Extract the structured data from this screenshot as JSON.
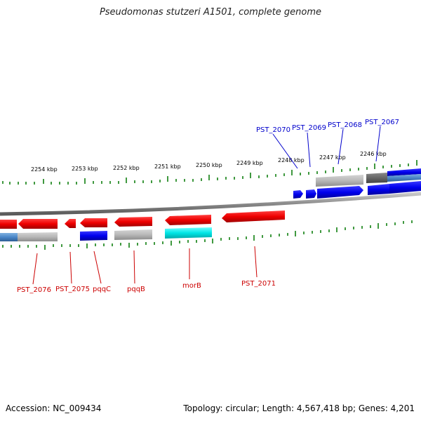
{
  "title": "Pseudomonas stutzeri A1501, complete genome",
  "footer": {
    "accession": "Accession: NC_009434",
    "summary": "Topology: circular; Length: 4,567,418 bp; Genes: 4,201"
  },
  "scale_labels": [
    "2254 kbp",
    "2253 kbp",
    "2252 kbp",
    "2251 kbp",
    "2250 kbp",
    "2249 kbp",
    "2248 kbp",
    "2247 kbp",
    "2246 kbp"
  ],
  "genes_forward": [
    "PST_2070",
    "PST_2069",
    "PST_2068",
    "PST_2067"
  ],
  "genes_reverse": [
    "PST_2076",
    "PST_2075",
    "pqqC",
    "pqqB",
    "morB",
    "PST_2071"
  ],
  "colors": {
    "forward_gene": "#0000ee",
    "reverse_gene": "#ee0000",
    "forward_label": "#0000cc",
    "reverse_label": "#cc0000",
    "backbone": "#888888",
    "tick": "#007700",
    "cyan_feature": "#00e5e5",
    "gray_feature": "#b0b0b0"
  }
}
